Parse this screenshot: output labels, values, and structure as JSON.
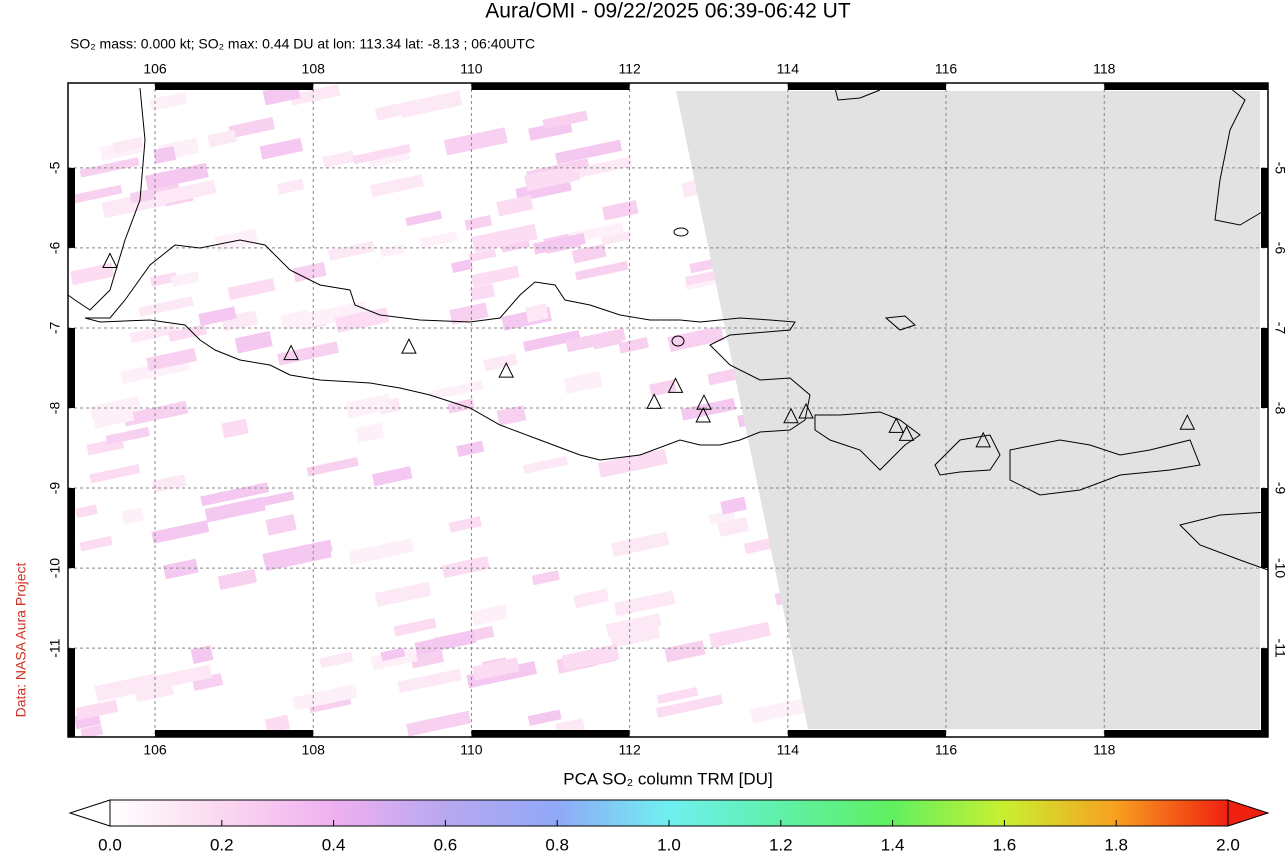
{
  "map": {
    "title": "Aura/OMI - 09/22/2025 06:39-06:42 UT",
    "subtitle": "SO₂ mass: 0.000 kt; SO₂ max: 0.44 DU at lon: 113.34 lat: -8.13 ; 06:40UTC",
    "credit": "Data: NASA Aura Project",
    "xlim": [
      104.9,
      120.07
    ],
    "ylim": [
      -3.94,
      -12.11
    ],
    "xticks": [
      106,
      108,
      110,
      112,
      114,
      116,
      118
    ],
    "yticks": [
      -5,
      -6,
      -7,
      -8,
      -9,
      -10,
      -11
    ],
    "volcanoes": [
      {
        "lon": 107.72,
        "lat": -7.32
      },
      {
        "lon": 109.21,
        "lat": -7.24
      },
      {
        "lon": 110.44,
        "lat": -7.54
      },
      {
        "lon": 105.43,
        "lat": -6.17
      },
      {
        "lon": 112.31,
        "lat": -7.93
      },
      {
        "lon": 112.58,
        "lat": -7.73
      },
      {
        "lon": 112.94,
        "lat": -7.94
      },
      {
        "lon": 112.93,
        "lat": -8.1
      },
      {
        "lon": 114.04,
        "lat": -8.11
      },
      {
        "lon": 114.23,
        "lat": -8.05
      },
      {
        "lon": 115.37,
        "lat": -8.23
      },
      {
        "lon": 115.5,
        "lat": -8.33
      },
      {
        "lon": 116.47,
        "lat": -8.41
      },
      {
        "lon": 119.05,
        "lat": -8.19
      }
    ]
  },
  "colorbar": {
    "label": "PCA SO₂ column TRM [DU]",
    "lim": [
      0,
      2
    ],
    "ticks": [
      {
        "value": 0,
        "label": "0.0"
      },
      {
        "value": 0.2,
        "label": "0.2"
      },
      {
        "value": 0.4,
        "label": "0.4"
      },
      {
        "value": 0.6,
        "label": "0.6"
      },
      {
        "value": 0.8,
        "label": "0.8"
      },
      {
        "value": 1,
        "label": "1.0"
      },
      {
        "value": 1.2,
        "label": "1.2"
      },
      {
        "value": 1.4,
        "label": "1.4"
      },
      {
        "value": 1.6,
        "label": "1.6"
      },
      {
        "value": 1.8,
        "label": "1.8"
      },
      {
        "value": 2,
        "label": "2.0"
      }
    ]
  }
}
